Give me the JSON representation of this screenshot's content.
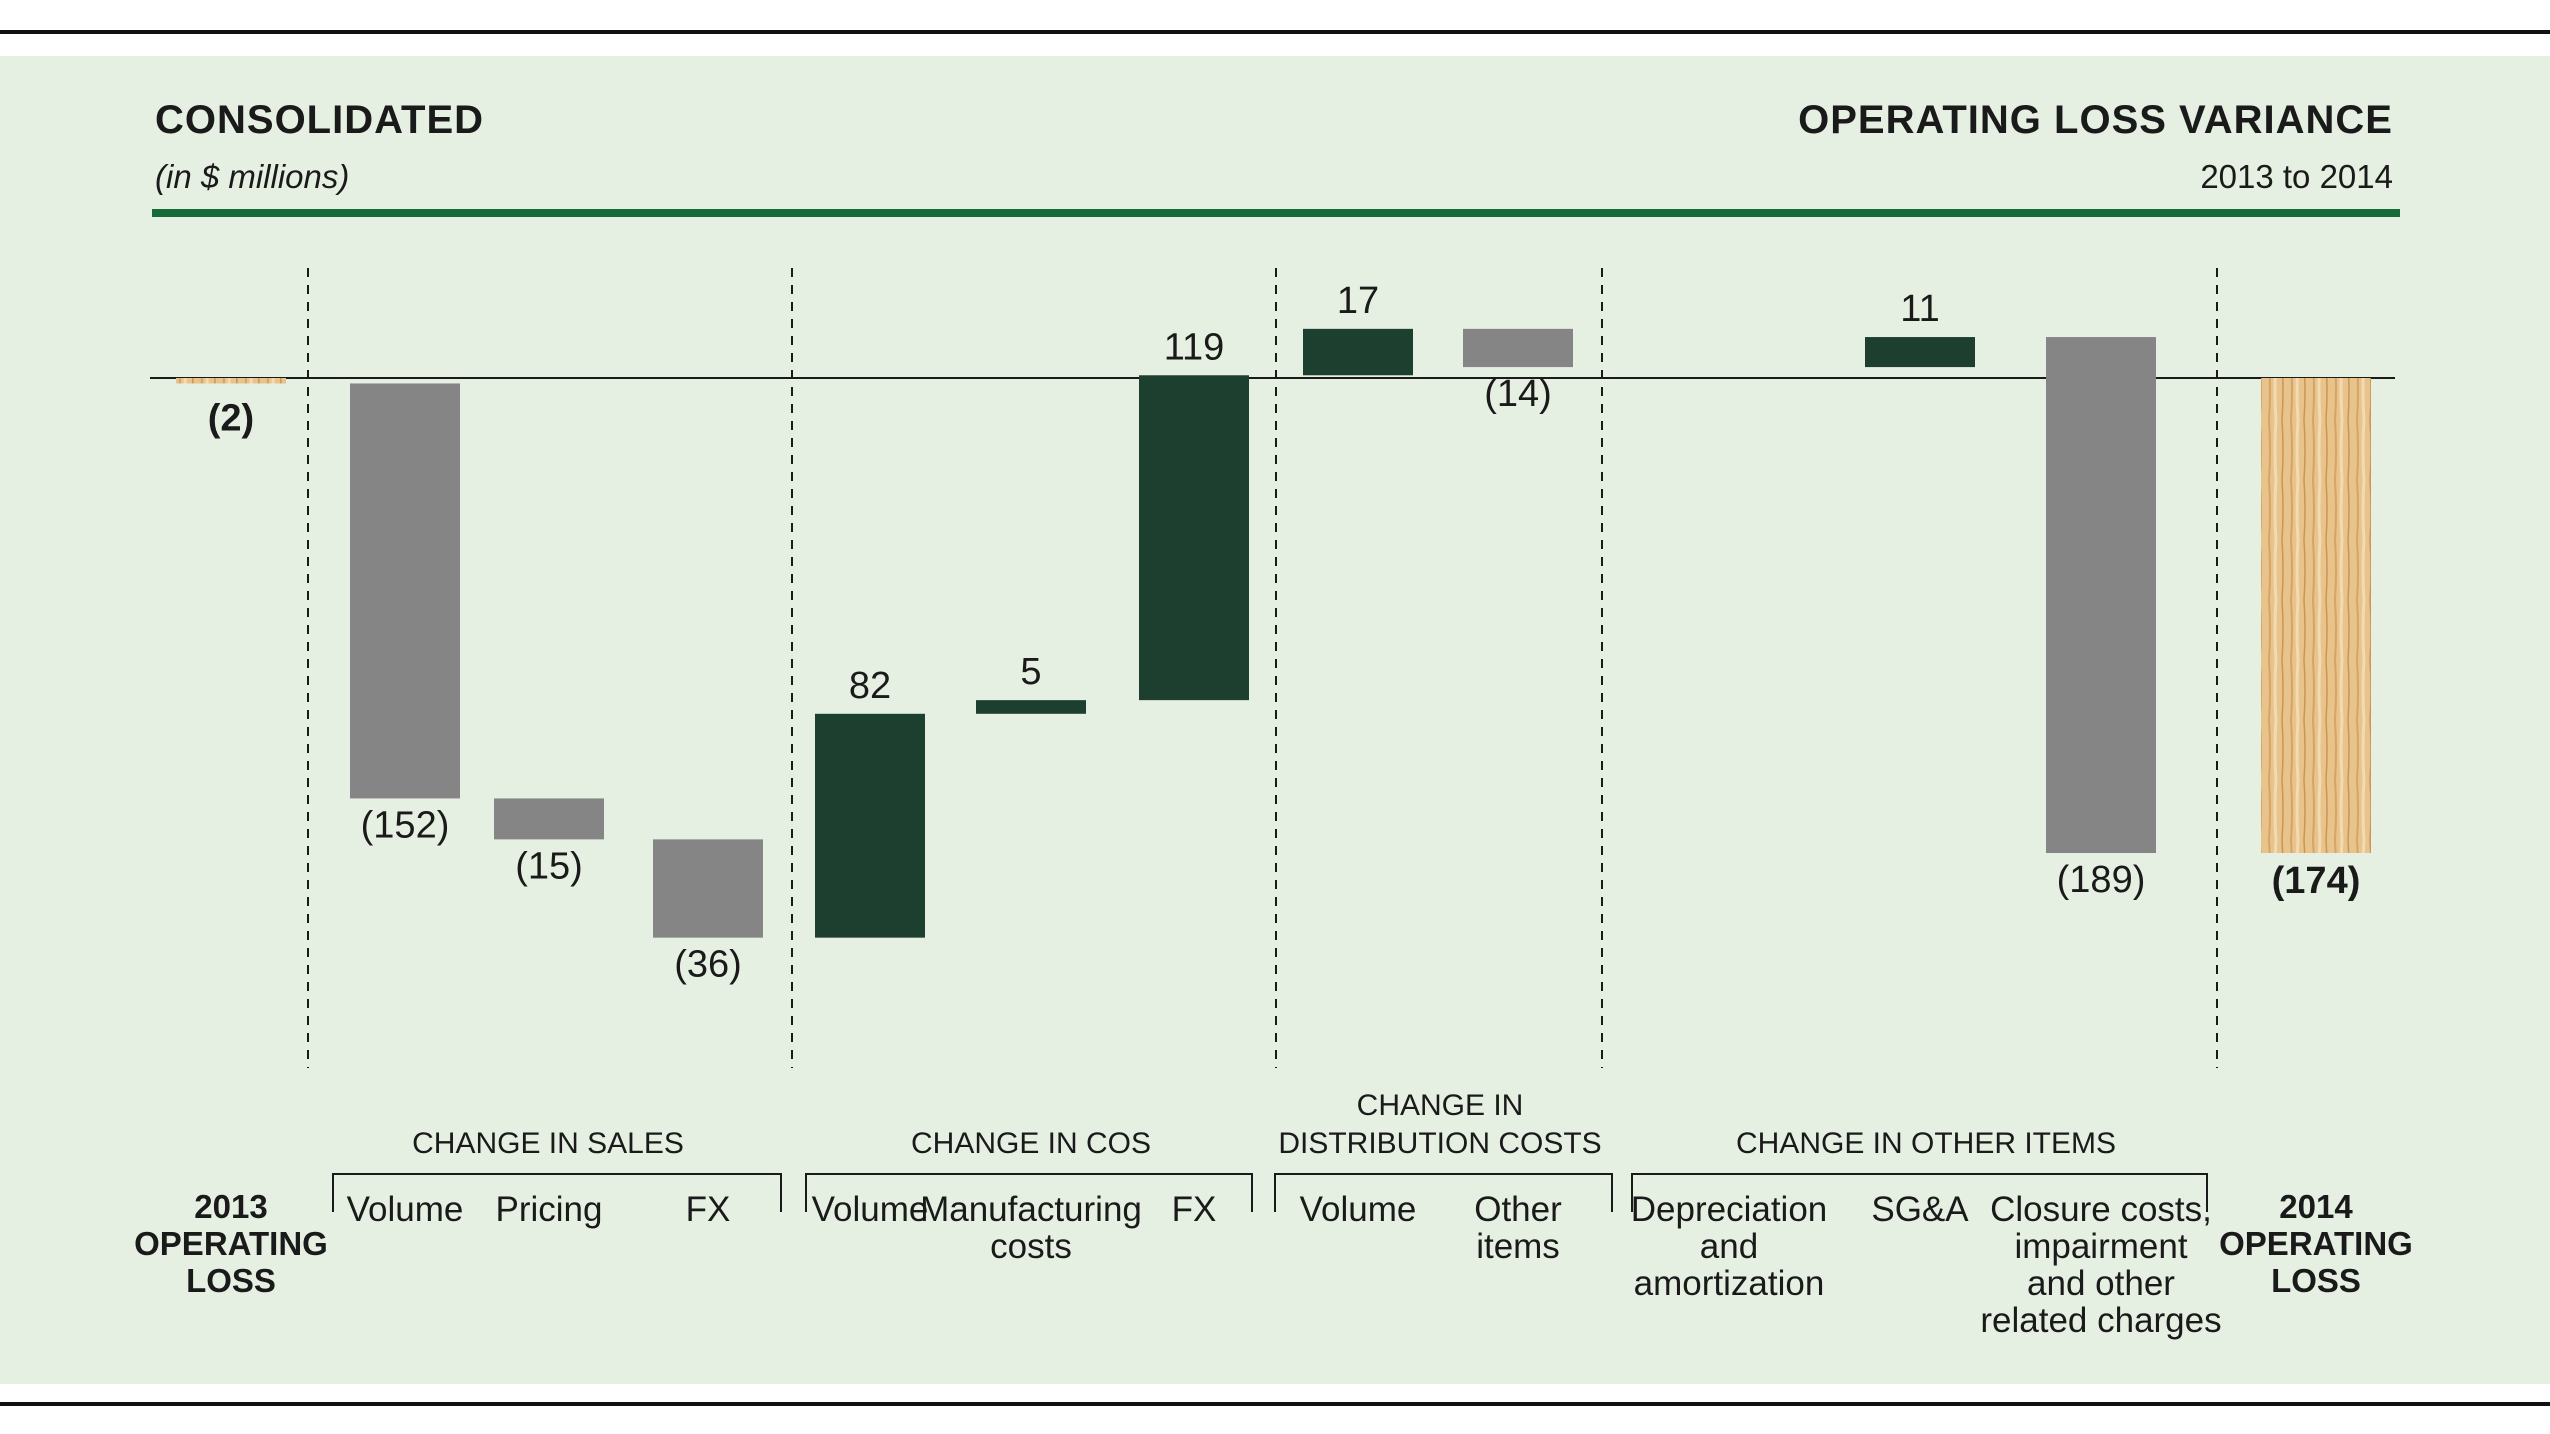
{
  "header": {
    "left_title": "CONSOLIDATED",
    "left_subtitle": "(in $ millions)",
    "right_title": "OPERATING LOSS VARIANCE",
    "right_subtitle": "2013 to 2014"
  },
  "colors": {
    "background": "#e5efe2",
    "increase": "#1c3f30",
    "decrease": "#858585",
    "total": "#e8c38c",
    "header_rule": "#176b3a"
  },
  "chart_data": {
    "type": "waterfall",
    "title": "OPERATING LOSS VARIANCE",
    "ylabel": "in $ millions",
    "start": {
      "lines": [
        "2013",
        "OPERATING",
        "LOSS"
      ],
      "value": -2,
      "label": "(2)"
    },
    "end": {
      "lines": [
        "2014",
        "OPERATING",
        "LOSS"
      ],
      "value": -174,
      "label": "(174)"
    },
    "groups": [
      {
        "lines": [
          "CHANGE IN SALES"
        ],
        "steps": [
          {
            "lines": [
              "Volume"
            ],
            "value": -152,
            "label": "(152)"
          },
          {
            "lines": [
              "Pricing"
            ],
            "value": -15,
            "label": "(15)"
          },
          {
            "lines": [
              "FX"
            ],
            "value": -36,
            "label": "(36)"
          }
        ]
      },
      {
        "lines": [
          "CHANGE IN COS"
        ],
        "steps": [
          {
            "lines": [
              "Volume"
            ],
            "value": 82,
            "label": "82"
          },
          {
            "lines": [
              "Manufacturing",
              "costs"
            ],
            "value": 5,
            "label": "5"
          },
          {
            "lines": [
              "FX"
            ],
            "value": 119,
            "label": "119"
          }
        ]
      },
      {
        "lines": [
          "CHANGE IN",
          "DISTRIBUTION COSTS"
        ],
        "steps": [
          {
            "lines": [
              "Volume"
            ],
            "value": 17,
            "label": "17"
          },
          {
            "lines": [
              "Other",
              "items"
            ],
            "value": -14,
            "label": "(14)"
          }
        ]
      },
      {
        "lines": [
          "CHANGE IN OTHER ITEMS"
        ],
        "steps": [
          {
            "lines": [
              "Depreciation",
              "and",
              "amortization"
            ],
            "value": 0,
            "label": ""
          },
          {
            "lines": [
              "SG&A"
            ],
            "value": 11,
            "label": "11"
          },
          {
            "lines": [
              "Closure costs,",
              "impairment",
              "and other",
              "related charges"
            ],
            "value": -189,
            "label": "(189)"
          }
        ]
      }
    ]
  }
}
